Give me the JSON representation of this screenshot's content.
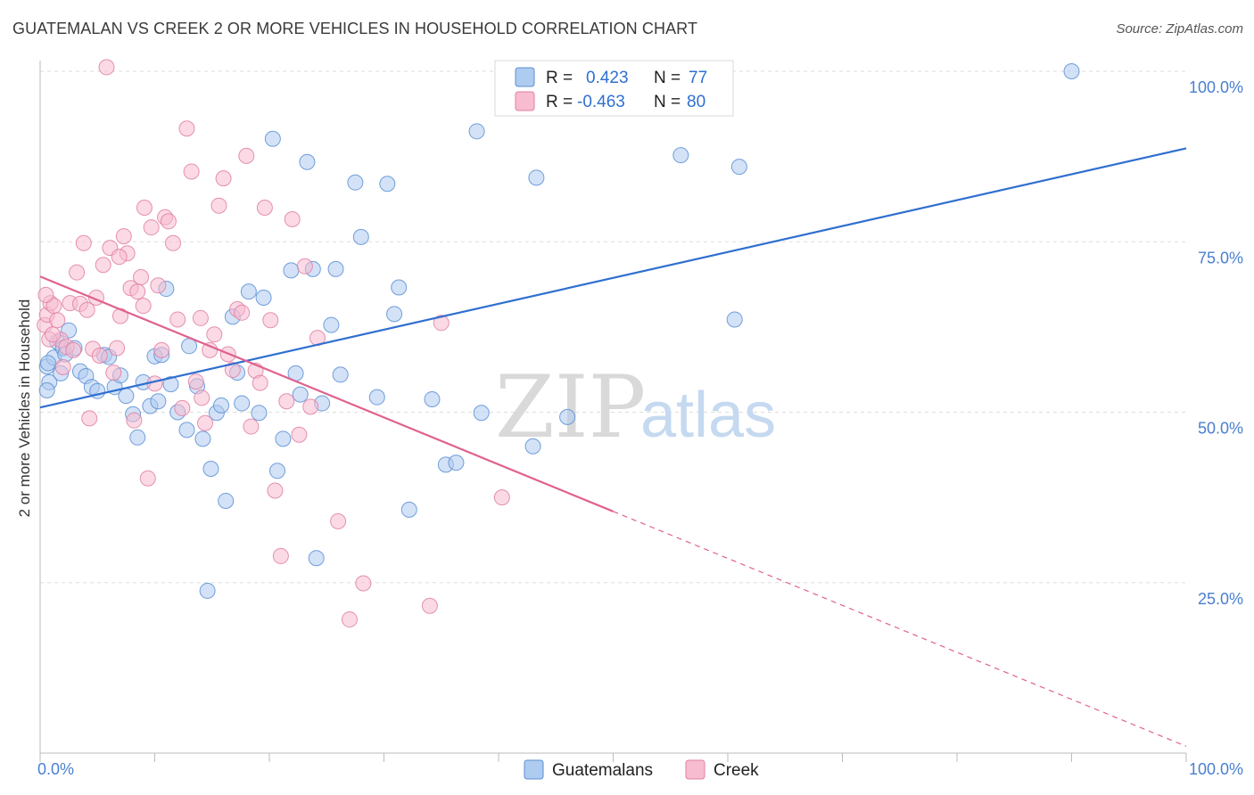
{
  "title": "GUATEMALAN VS CREEK 2 OR MORE VEHICLES IN HOUSEHOLD CORRELATION CHART",
  "source": "Source: ZipAtlas.com",
  "colors": {
    "guatemalans_fill": "#aecbf0",
    "guatemalans_stroke": "#5b8fd4",
    "guatemalans_line": "#2f6fd0",
    "creek_fill": "#f7bcd0",
    "creek_stroke": "#e07fa2",
    "creek_line": "#e0618f",
    "axis_tick": "#4a7fd0",
    "grid": "#dddddd"
  },
  "legend": {
    "r_label": "R =",
    "n_label": "N =",
    "rows": [
      {
        "r": "0.423",
        "n": "77"
      },
      {
        "r": "-0.463",
        "n": "80"
      }
    ]
  },
  "watermark": {
    "zip": "ZIP",
    "atlas": "atlas"
  },
  "chart_data": {
    "type": "scatter",
    "ylabel": "2 or more Vehicles in Household",
    "xlim": [
      0,
      100
    ],
    "ylim": [
      0,
      100
    ],
    "x_tick_labels": [
      "0.0%",
      "100.0%"
    ],
    "y_ticks": [
      25,
      50,
      75,
      100
    ],
    "y_tick_labels": [
      "25.0%",
      "50.0%",
      "75.0%",
      "100.0%"
    ],
    "grid": true,
    "legend_position": "top-center",
    "series": [
      {
        "name": "Guatemalans",
        "r": 0.423,
        "n": 77,
        "trend": {
          "x": [
            0,
            100
          ],
          "y": [
            50.7,
            88.7
          ],
          "dashed_from": null
        },
        "points": [
          [
            0.6,
            56.7
          ],
          [
            0.8,
            54.4
          ],
          [
            1.2,
            58.0
          ],
          [
            1.5,
            60.3
          ],
          [
            1.8,
            55.7
          ],
          [
            2.0,
            59.4
          ],
          [
            2.2,
            58.5
          ],
          [
            2.5,
            62.0
          ],
          [
            3.0,
            59.4
          ],
          [
            3.5,
            56.0
          ],
          [
            4.0,
            55.3
          ],
          [
            4.5,
            53.7
          ],
          [
            5.0,
            53.1
          ],
          [
            5.6,
            58.4
          ],
          [
            6.0,
            58.1
          ],
          [
            6.5,
            53.7
          ],
          [
            7.0,
            55.4
          ],
          [
            7.5,
            52.4
          ],
          [
            8.1,
            49.7
          ],
          [
            8.5,
            46.3
          ],
          [
            9.0,
            54.4
          ],
          [
            9.6,
            50.9
          ],
          [
            10.0,
            58.2
          ],
          [
            10.3,
            51.6
          ],
          [
            10.6,
            58.4
          ],
          [
            11.0,
            68.1
          ],
          [
            11.4,
            54.1
          ],
          [
            12.0,
            50.0
          ],
          [
            12.8,
            47.4
          ],
          [
            13.0,
            59.7
          ],
          [
            13.7,
            53.8
          ],
          [
            14.2,
            46.1
          ],
          [
            14.6,
            23.8
          ],
          [
            14.9,
            41.7
          ],
          [
            15.4,
            49.9
          ],
          [
            15.8,
            51.0
          ],
          [
            16.2,
            37.0
          ],
          [
            16.8,
            64.0
          ],
          [
            17.2,
            55.8
          ],
          [
            17.6,
            51.3
          ],
          [
            18.2,
            67.7
          ],
          [
            19.1,
            49.9
          ],
          [
            19.5,
            66.8
          ],
          [
            20.3,
            90.1
          ],
          [
            20.7,
            41.4
          ],
          [
            21.2,
            46.1
          ],
          [
            21.9,
            70.8
          ],
          [
            22.3,
            55.7
          ],
          [
            22.7,
            52.6
          ],
          [
            23.3,
            86.7
          ],
          [
            23.8,
            71.0
          ],
          [
            24.1,
            28.6
          ],
          [
            24.6,
            51.3
          ],
          [
            25.4,
            62.8
          ],
          [
            25.8,
            71.0
          ],
          [
            26.2,
            55.5
          ],
          [
            27.5,
            83.7
          ],
          [
            28.0,
            75.7
          ],
          [
            29.4,
            52.2
          ],
          [
            30.3,
            83.5
          ],
          [
            30.9,
            64.4
          ],
          [
            31.3,
            68.3
          ],
          [
            32.2,
            35.7
          ],
          [
            34.2,
            51.9
          ],
          [
            35.4,
            42.3
          ],
          [
            36.3,
            42.6
          ],
          [
            38.1,
            91.2
          ],
          [
            38.5,
            49.9
          ],
          [
            43.0,
            45.0
          ],
          [
            43.3,
            84.4
          ],
          [
            46.0,
            49.3
          ],
          [
            55.9,
            87.7
          ],
          [
            60.6,
            63.6
          ],
          [
            61.0,
            86.0
          ],
          [
            90.0,
            100.0
          ],
          [
            0.7,
            57.2
          ],
          [
            0.6,
            53.2
          ]
        ]
      },
      {
        "name": "Creek",
        "r": -0.463,
        "n": 80,
        "trend": {
          "x": [
            0,
            100
          ],
          "y": [
            69.9,
            1.0
          ],
          "dashed_from": 50.0
        },
        "points": [
          [
            0.4,
            62.8
          ],
          [
            0.6,
            64.3
          ],
          [
            0.9,
            66.0
          ],
          [
            1.2,
            65.6
          ],
          [
            1.5,
            63.5
          ],
          [
            1.8,
            60.6
          ],
          [
            2.0,
            56.6
          ],
          [
            2.3,
            59.6
          ],
          [
            2.6,
            66.0
          ],
          [
            2.9,
            59.1
          ],
          [
            3.2,
            70.5
          ],
          [
            3.5,
            65.9
          ],
          [
            3.8,
            74.8
          ],
          [
            4.1,
            65.0
          ],
          [
            4.3,
            49.1
          ],
          [
            4.6,
            59.3
          ],
          [
            4.9,
            66.8
          ],
          [
            5.2,
            58.3
          ],
          [
            5.5,
            71.6
          ],
          [
            5.8,
            100.6
          ],
          [
            6.1,
            74.1
          ],
          [
            6.4,
            55.8
          ],
          [
            6.7,
            59.4
          ],
          [
            7.0,
            64.1
          ],
          [
            7.3,
            75.8
          ],
          [
            7.6,
            73.3
          ],
          [
            7.9,
            68.2
          ],
          [
            8.2,
            48.8
          ],
          [
            8.5,
            67.7
          ],
          [
            8.8,
            69.8
          ],
          [
            9.1,
            80.0
          ],
          [
            9.4,
            40.3
          ],
          [
            9.7,
            77.1
          ],
          [
            10.0,
            54.2
          ],
          [
            10.3,
            68.6
          ],
          [
            10.6,
            59.1
          ],
          [
            10.9,
            78.6
          ],
          [
            11.2,
            78.0
          ],
          [
            11.6,
            74.8
          ],
          [
            12.0,
            63.6
          ],
          [
            12.4,
            50.6
          ],
          [
            12.8,
            91.6
          ],
          [
            13.2,
            85.3
          ],
          [
            13.6,
            54.5
          ],
          [
            14.0,
            63.8
          ],
          [
            14.4,
            48.4
          ],
          [
            14.8,
            59.1
          ],
          [
            15.2,
            61.4
          ],
          [
            15.6,
            80.3
          ],
          [
            16.0,
            84.3
          ],
          [
            16.4,
            58.5
          ],
          [
            16.8,
            56.2
          ],
          [
            17.2,
            65.1
          ],
          [
            17.6,
            64.6
          ],
          [
            18.0,
            87.6
          ],
          [
            18.4,
            47.9
          ],
          [
            18.8,
            56.1
          ],
          [
            19.2,
            54.3
          ],
          [
            19.6,
            80.0
          ],
          [
            20.1,
            63.5
          ],
          [
            20.5,
            38.5
          ],
          [
            21.0,
            28.9
          ],
          [
            21.5,
            51.6
          ],
          [
            22.0,
            78.3
          ],
          [
            22.6,
            46.7
          ],
          [
            23.1,
            71.4
          ],
          [
            23.6,
            50.8
          ],
          [
            24.2,
            60.9
          ],
          [
            26.0,
            34.0
          ],
          [
            27.0,
            19.6
          ],
          [
            28.2,
            24.9
          ],
          [
            34.0,
            21.6
          ],
          [
            35.0,
            63.1
          ],
          [
            40.3,
            37.5
          ],
          [
            0.5,
            67.2
          ],
          [
            0.8,
            60.7
          ],
          [
            1.1,
            61.4
          ],
          [
            6.9,
            72.8
          ],
          [
            9.0,
            65.6
          ],
          [
            14.1,
            52.1
          ]
        ]
      }
    ]
  }
}
